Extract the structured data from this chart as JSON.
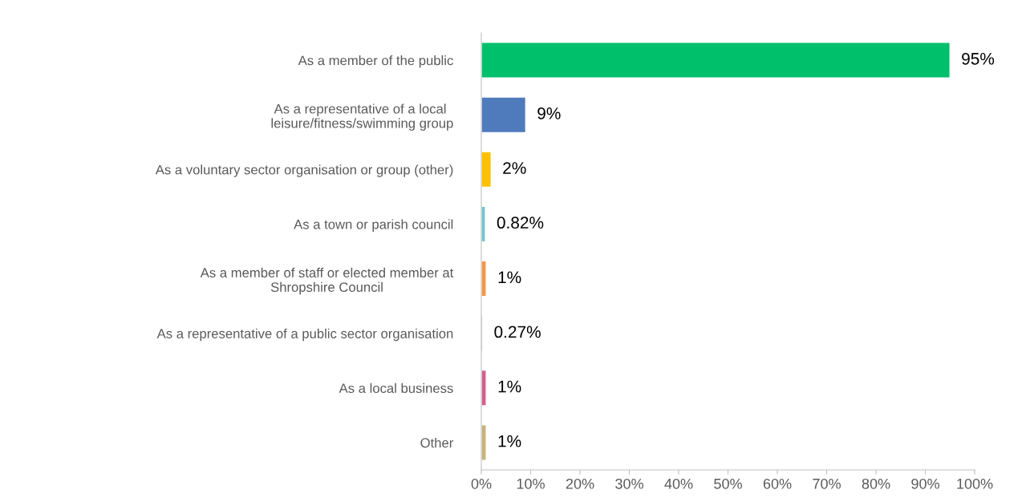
{
  "chart_data": {
    "type": "bar",
    "orientation": "horizontal",
    "categories": [
      "As a member of the public",
      "As a representative of a local \nleisure/fitness/swimming group",
      "As a voluntary sector organisation or group (other)",
      "As a town or parish council",
      "As a member of staff or elected member at\nShropshire Council",
      "As a representative of a public sector organisation",
      "As a local business",
      "Other"
    ],
    "values": [
      95,
      9,
      2,
      0.82,
      1,
      0.27,
      1,
      1
    ],
    "colors": [
      "#00c06b",
      "#4f7bbc",
      "#ffc000",
      "#6fc5d0",
      "#f79646",
      "#5b4f7c",
      "#d35f91",
      "#c9b27a"
    ],
    "value_labels": [
      "95%",
      "9%",
      "2%",
      "0.82%",
      "1%",
      "0.27%",
      "1%",
      "1%"
    ],
    "xlim": [
      0,
      100
    ],
    "xticks": [
      {
        "value": 0,
        "label": "0%"
      },
      {
        "value": 10,
        "label": "10%"
      },
      {
        "value": 20,
        "label": "20%"
      },
      {
        "value": 30,
        "label": "30%"
      },
      {
        "value": 40,
        "label": "40%"
      },
      {
        "value": 50,
        "label": "50%"
      },
      {
        "value": 60,
        "label": "60%"
      },
      {
        "value": 70,
        "label": "70%"
      },
      {
        "value": 80,
        "label": "80%"
      },
      {
        "value": 90,
        "label": "90%"
      },
      {
        "value": 100,
        "label": "100%"
      }
    ],
    "grid": false,
    "legend": false
  }
}
